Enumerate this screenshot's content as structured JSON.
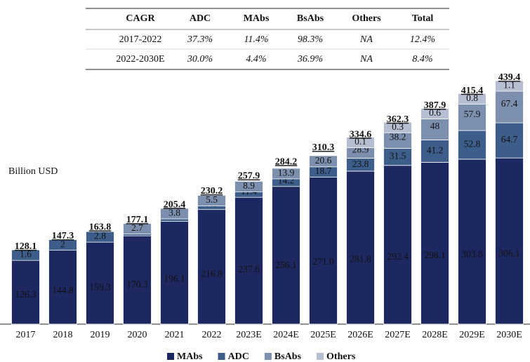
{
  "table": {
    "header": [
      "CAGR",
      "ADC",
      "MAbs",
      "BsAbs",
      "Others",
      "Total"
    ],
    "rows": [
      [
        "2017-2022",
        "37.3%",
        "11.4%",
        "98.3%",
        "NA",
        "12.4%"
      ],
      [
        "2022-2030E",
        "30.0%",
        "4.4%",
        "36.9%",
        "NA",
        "8.4%"
      ]
    ]
  },
  "chart_data": {
    "type": "bar",
    "stacked": true,
    "unit_label": "Billion USD",
    "categories": [
      "2017",
      "2018",
      "2019",
      "2020",
      "2021",
      "2022",
      "2023E",
      "2024E",
      "2025E",
      "2026E",
      "2027E",
      "2028E",
      "2029E",
      "2030E"
    ],
    "series": [
      {
        "name": "MAbs",
        "color": "#1e2860",
        "values": [
          126.3,
          144.8,
          159.3,
          170.3,
          196.1,
          216.8,
          237.6,
          256.1,
          271.0,
          281.8,
          292.4,
          298.1,
          303.8,
          306.1
        ],
        "value_labels": [
          "126.3",
          "144.8",
          "159.3",
          "170.3",
          "196.1",
          "216.8",
          "237.6",
          "256.1",
          "271.0",
          "281.8",
          "292.4",
          "298.1",
          "303.8",
          "306.1"
        ]
      },
      {
        "name": "ADC",
        "color": "#3d5e8a",
        "values": [
          1.6,
          2.0,
          2.8,
          4.1,
          5.5,
          7.9,
          11.4,
          14.2,
          18.7,
          23.8,
          31.5,
          41.2,
          52.8,
          64.7
        ]
      },
      {
        "name": "BsAbs",
        "color": "#7d8fae",
        "values": [
          null,
          null,
          null,
          2.7,
          3.8,
          5.5,
          8.9,
          13.9,
          20.6,
          28.9,
          38.2,
          48.0,
          57.9,
          67.4
        ]
      },
      {
        "name": "Others",
        "color": "#b6bfd2",
        "values": [
          null,
          null,
          null,
          null,
          null,
          null,
          null,
          null,
          null,
          0.1,
          0.3,
          0.6,
          0.8,
          1.1
        ]
      }
    ],
    "totals": [
      128.1,
      147.3,
      163.8,
      177.1,
      205.4,
      230.2,
      257.9,
      284.2,
      310.3,
      334.6,
      362.3,
      387.9,
      415.4,
      439.4
    ]
  }
}
